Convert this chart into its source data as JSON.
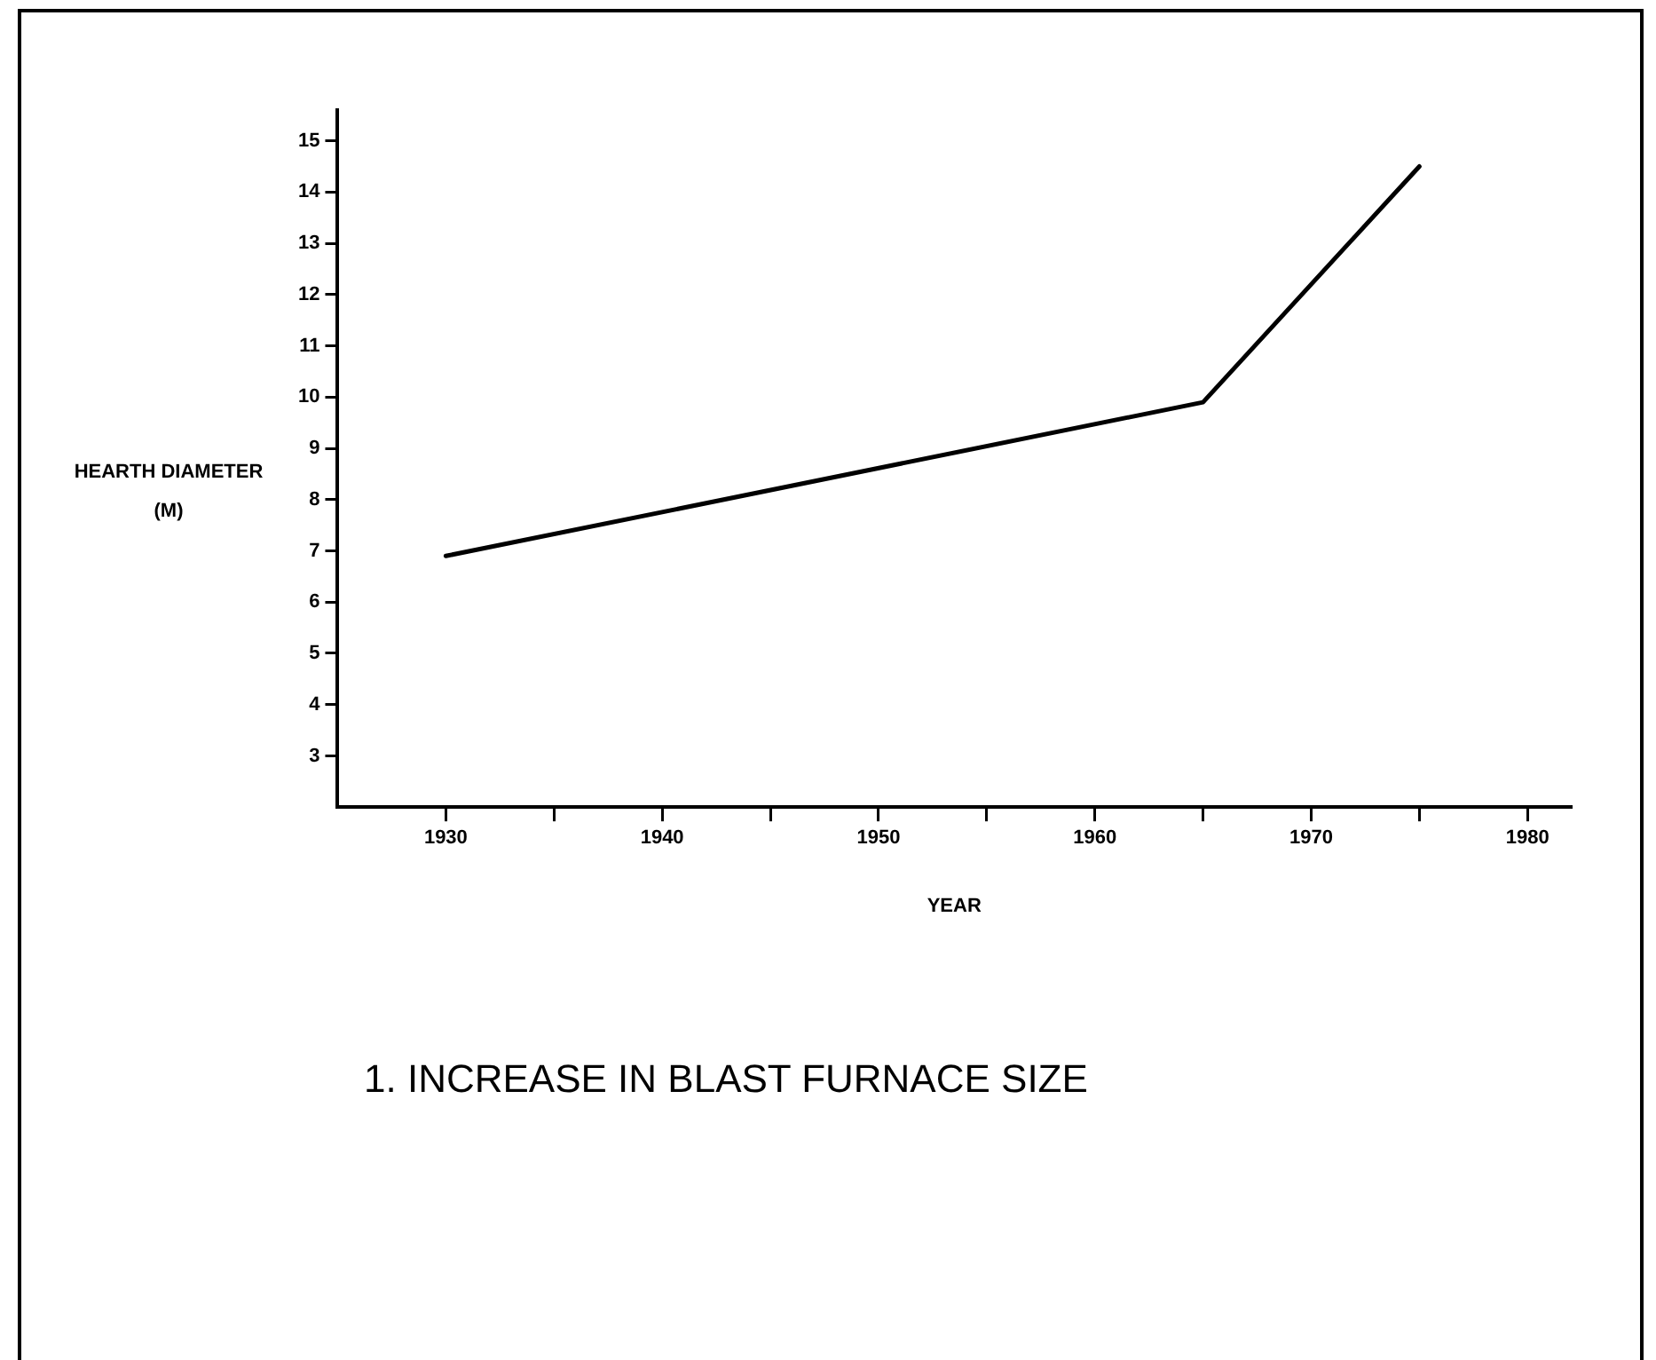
{
  "chart_data": {
    "type": "line",
    "title": "1. INCREASE IN BLAST FURNACE SIZE",
    "xlabel": "YEAR",
    "ylabel": "HEARTH DIAMETER (M)",
    "x": [
      1930,
      1965,
      1975
    ],
    "series": [
      {
        "color": "#000000",
        "values": [
          6.9,
          9.9,
          14.5
        ]
      }
    ],
    "xlim": [
      1925,
      1982
    ],
    "xticks": [
      1930,
      {
        "value": 1935,
        "label": null
      },
      1940,
      {
        "value": 1945,
        "label": null
      },
      1950,
      {
        "value": 1955,
        "label": null
      },
      1960,
      {
        "value": 1965,
        "label": null
      },
      1970,
      {
        "value": 1975,
        "label": null
      },
      1980
    ],
    "ylim": [
      2,
      15.6
    ],
    "yticks": [
      3,
      4,
      5,
      6,
      7,
      8,
      9,
      10,
      11,
      12,
      13,
      14,
      15
    ],
    "grid": false,
    "legend": false,
    "marker": "none",
    "line_style": "solid"
  }
}
